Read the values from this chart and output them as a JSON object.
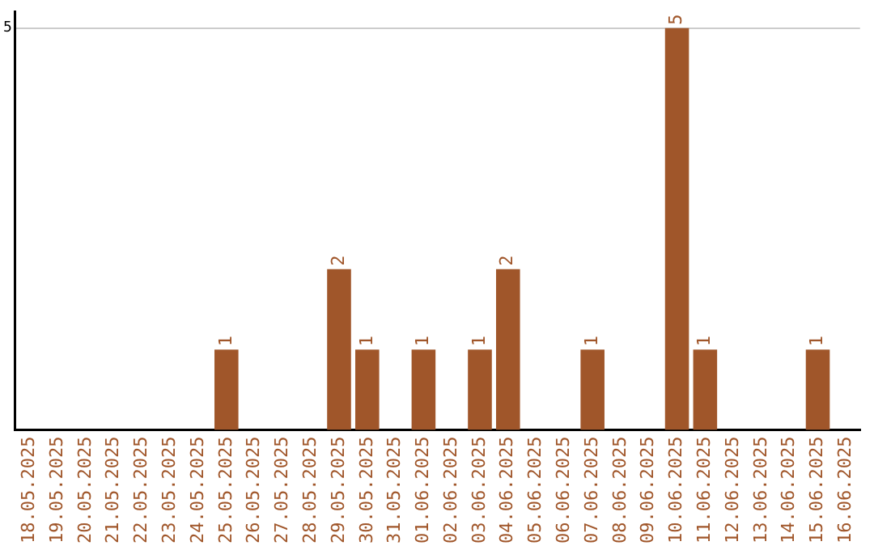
{
  "chart_data": {
    "type": "bar",
    "categories": [
      "18.05.2025",
      "19.05.2025",
      "20.05.2025",
      "21.05.2025",
      "22.05.2025",
      "23.05.2025",
      "24.05.2025",
      "25.05.2025",
      "26.05.2025",
      "27.05.2025",
      "28.05.2025",
      "29.05.2025",
      "30.05.2025",
      "31.05.2025",
      "01.06.2025",
      "02.06.2025",
      "03.06.2025",
      "04.06.2025",
      "05.06.2025",
      "06.06.2025",
      "07.06.2025",
      "08.06.2025",
      "09.06.2025",
      "10.06.2025",
      "11.06.2025",
      "12.06.2025",
      "13.06.2025",
      "14.06.2025",
      "15.06.2025",
      "16.06.2025"
    ],
    "values": [
      0,
      0,
      0,
      0,
      0,
      0,
      0,
      1,
      0,
      0,
      0,
      2,
      1,
      0,
      1,
      0,
      1,
      2,
      0,
      0,
      1,
      0,
      0,
      5,
      1,
      0,
      0,
      0,
      1,
      0
    ],
    "value_labels": [
      null,
      null,
      null,
      null,
      null,
      null,
      null,
      "1",
      null,
      null,
      null,
      "2",
      "1",
      null,
      "1",
      null,
      "1",
      "2",
      null,
      null,
      "1",
      null,
      null,
      "5",
      "1",
      null,
      null,
      null,
      "1",
      null
    ],
    "color": "#a0562a",
    "ylim": [
      0,
      5.2
    ],
    "yticks": [
      5
    ],
    "grid": "y",
    "legend": false
  }
}
